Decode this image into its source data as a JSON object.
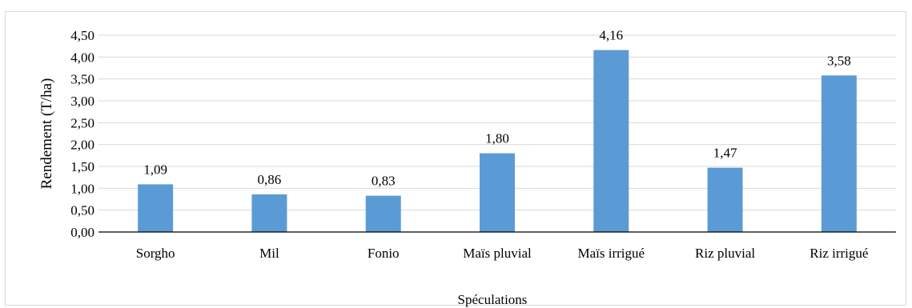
{
  "chart_data": {
    "type": "bar",
    "categories": [
      "Sorgho",
      "Mil",
      "Fonio",
      "Maïs pluvial",
      "Maïs irrigué",
      "Riz pluvial",
      "Riz irrigué"
    ],
    "values": [
      1.09,
      0.86,
      0.83,
      1.8,
      4.16,
      1.47,
      3.58
    ],
    "data_labels": [
      "1,09",
      "0,86",
      "0,83",
      "1,80",
      "4,16",
      "1,47",
      "3,58"
    ],
    "y_ticks": [
      "0,00",
      "0,50",
      "1,00",
      "1,50",
      "2,00",
      "2,50",
      "3,00",
      "3,50",
      "4,00",
      "4,50"
    ],
    "ylim": [
      0,
      4.5
    ],
    "xlabel": "Spéculations",
    "ylabel": "Rendement (T/ha)",
    "grid": true,
    "legend": "none",
    "bar_color": "#5b9bd5",
    "grid_color": "#d9d9d9"
  }
}
